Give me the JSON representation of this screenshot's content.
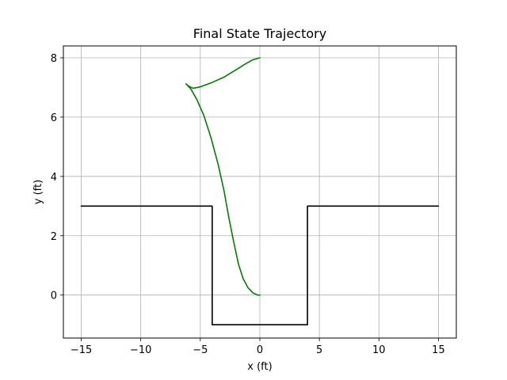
{
  "chart_data": {
    "type": "line",
    "title": "Final State Trajectory",
    "xlabel": "x (ft)",
    "ylabel": "y (ft)",
    "xlim": [
      -16.5,
      16.5
    ],
    "ylim": [
      -1.45,
      8.4
    ],
    "xticks": [
      -15,
      -10,
      -5,
      0,
      5,
      10,
      15
    ],
    "yticks": [
      0,
      2,
      4,
      6,
      8
    ],
    "grid": true,
    "series": [
      {
        "color": "#000000",
        "points": [
          [
            -15,
            3
          ],
          [
            -4,
            3
          ],
          [
            -4,
            -1
          ],
          [
            4,
            -1
          ],
          [
            4,
            3
          ],
          [
            15,
            3
          ]
        ]
      },
      {
        "color": "#008000",
        "points": [
          [
            0,
            8.0
          ],
          [
            -0.6,
            7.93
          ],
          [
            -1.3,
            7.77
          ],
          [
            -2.1,
            7.57
          ],
          [
            -3.0,
            7.35
          ],
          [
            -4.0,
            7.17
          ],
          [
            -5.0,
            7.02
          ],
          [
            -5.6,
            6.97
          ],
          [
            -6.0,
            7.05
          ],
          [
            -6.2,
            7.12
          ],
          [
            -5.8,
            6.95
          ],
          [
            -5.3,
            6.6
          ],
          [
            -4.7,
            6.05
          ],
          [
            -4.1,
            5.3
          ],
          [
            -3.5,
            4.4
          ],
          [
            -3.0,
            3.5
          ],
          [
            -2.6,
            2.6
          ],
          [
            -2.2,
            1.8
          ],
          [
            -1.8,
            1.05
          ],
          [
            -1.4,
            0.55
          ],
          [
            -1.0,
            0.25
          ],
          [
            -0.6,
            0.08
          ],
          [
            -0.2,
            0.0
          ],
          [
            0,
            0.0
          ]
        ]
      }
    ]
  }
}
